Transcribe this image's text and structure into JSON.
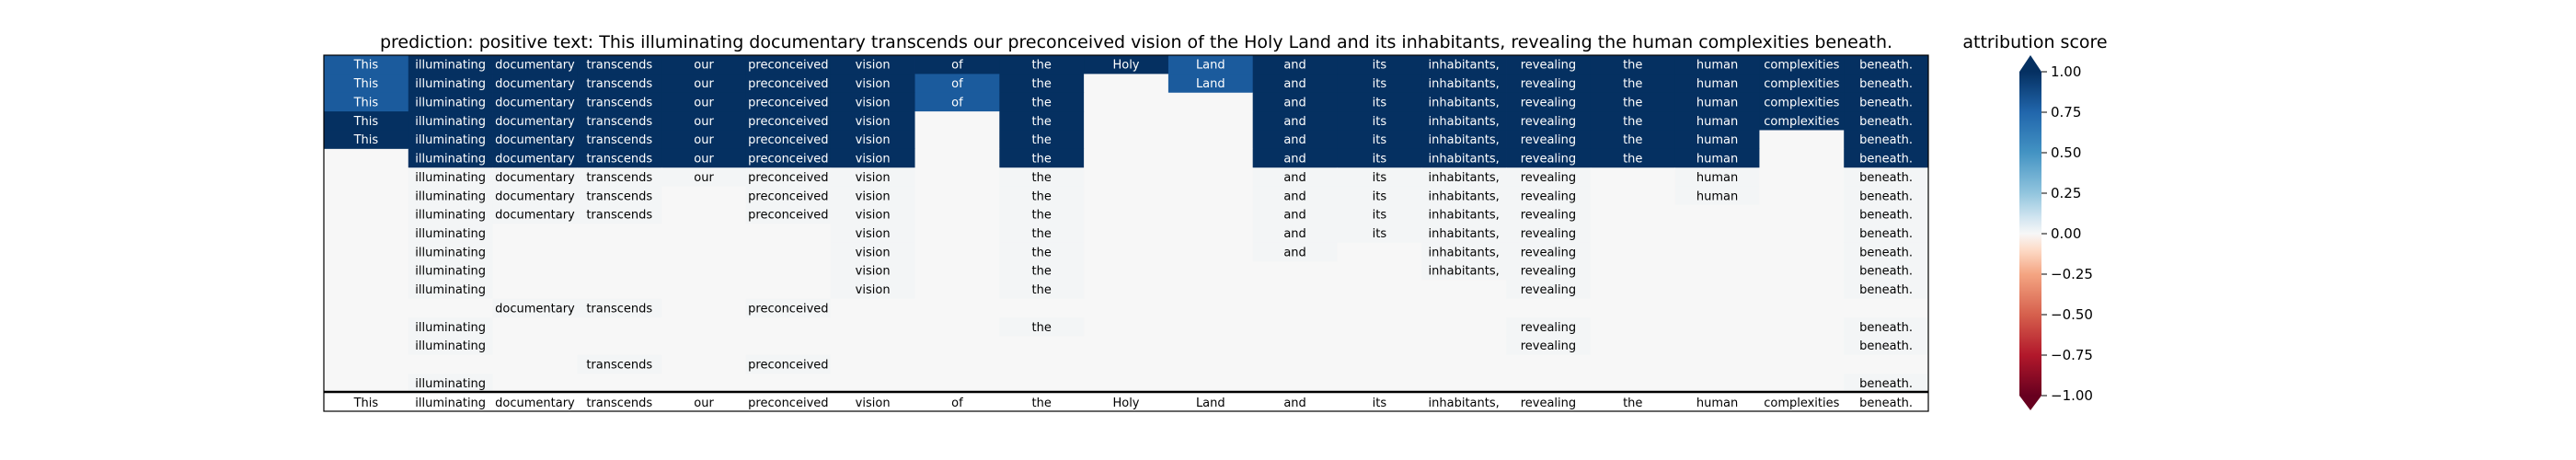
{
  "chart_data": [
    {
      "type": "heatmap",
      "title": "prediction:  positive     text:  This illuminating documentary transcends our preconceived vision of the Holy Land and its inhabitants, revealing the human complexities beneath.",
      "tokens": [
        "This",
        "illuminating",
        "documentary",
        "transcends",
        "our",
        "preconceived",
        "vision",
        "of",
        "the",
        "Holy",
        "Land",
        "and",
        "its",
        "inhabitants,",
        "revealing",
        "the",
        "human",
        "complexities",
        "beneath."
      ],
      "rows": [
        [
          0.8,
          1.0,
          1.0,
          1.0,
          1.0,
          1.0,
          1.0,
          1.0,
          1.0,
          1.0,
          0.8,
          1.0,
          1.0,
          1.0,
          1.0,
          1.0,
          1.0,
          1.0,
          1.0
        ],
        [
          0.8,
          1.0,
          1.0,
          1.0,
          1.0,
          1.0,
          1.0,
          0.8,
          1.0,
          0.0,
          0.8,
          1.0,
          1.0,
          1.0,
          1.0,
          1.0,
          1.0,
          1.0,
          1.0
        ],
        [
          0.8,
          1.0,
          1.0,
          1.0,
          1.0,
          1.0,
          1.0,
          0.8,
          1.0,
          0.0,
          0.0,
          1.0,
          1.0,
          1.0,
          1.0,
          1.0,
          1.0,
          1.0,
          1.0
        ],
        [
          1.0,
          1.0,
          1.0,
          1.0,
          1.0,
          1.0,
          1.0,
          0.0,
          1.0,
          0.0,
          0.0,
          1.0,
          1.0,
          1.0,
          1.0,
          1.0,
          1.0,
          1.0,
          1.0
        ],
        [
          1.0,
          1.0,
          1.0,
          1.0,
          1.0,
          1.0,
          1.0,
          0.0,
          1.0,
          0.0,
          0.0,
          1.0,
          1.0,
          1.0,
          1.0,
          1.0,
          1.0,
          0.0,
          1.0
        ],
        [
          0.0,
          1.0,
          1.0,
          1.0,
          1.0,
          1.0,
          1.0,
          0.0,
          1.0,
          0.0,
          0.0,
          1.0,
          1.0,
          1.0,
          1.0,
          1.0,
          1.0,
          0.0,
          1.0
        ],
        [
          0.0,
          0.01,
          0.01,
          0.01,
          0.01,
          0.01,
          0.01,
          0.0,
          0.01,
          0.0,
          0.0,
          0.01,
          0.01,
          0.01,
          0.01,
          0.0,
          0.01,
          0.0,
          0.01
        ],
        [
          0.0,
          0.01,
          0.01,
          0.01,
          0.0,
          0.01,
          0.01,
          0.0,
          0.01,
          0.0,
          0.0,
          0.01,
          0.01,
          0.01,
          0.01,
          0.0,
          0.01,
          0.0,
          0.01
        ],
        [
          0.0,
          0.01,
          0.01,
          0.01,
          0.0,
          0.01,
          0.01,
          0.0,
          0.01,
          0.0,
          0.0,
          0.01,
          0.01,
          0.01,
          0.01,
          0.0,
          0.0,
          0.0,
          0.01
        ],
        [
          0.0,
          0.01,
          0.0,
          0.0,
          0.0,
          0.0,
          0.01,
          0.0,
          0.01,
          0.0,
          0.0,
          0.01,
          0.01,
          0.01,
          0.01,
          0.0,
          0.0,
          0.0,
          0.01
        ],
        [
          0.0,
          0.01,
          0.0,
          0.0,
          0.0,
          0.0,
          0.01,
          0.0,
          0.01,
          0.0,
          0.0,
          0.01,
          0.0,
          0.01,
          0.01,
          0.0,
          0.0,
          0.0,
          0.01
        ],
        [
          0.0,
          0.01,
          0.0,
          0.0,
          0.0,
          0.0,
          0.01,
          0.0,
          0.01,
          0.0,
          0.0,
          0.0,
          0.0,
          0.01,
          0.01,
          0.0,
          0.0,
          0.0,
          0.01
        ],
        [
          0.0,
          0.01,
          0.0,
          0.0,
          0.0,
          0.0,
          0.01,
          0.0,
          0.01,
          0.0,
          0.0,
          0.0,
          0.0,
          0.0,
          0.01,
          0.0,
          0.0,
          0.0,
          0.01
        ],
        [
          0.0,
          0.0,
          0.01,
          0.01,
          0.0,
          0.01,
          0.0,
          0.0,
          0.0,
          0.0,
          0.0,
          0.0,
          0.0,
          0.0,
          0.0,
          0.0,
          0.0,
          0.0,
          0.0
        ],
        [
          0.0,
          0.01,
          0.0,
          0.0,
          0.0,
          0.0,
          0.0,
          0.0,
          0.01,
          0.0,
          0.0,
          0.0,
          0.0,
          0.0,
          0.01,
          0.0,
          0.0,
          0.0,
          0.01
        ],
        [
          0.0,
          0.01,
          0.0,
          0.0,
          0.0,
          0.0,
          0.0,
          0.0,
          0.0,
          0.0,
          0.0,
          0.0,
          0.0,
          0.0,
          0.01,
          0.0,
          0.0,
          0.0,
          0.01
        ],
        [
          0.0,
          0.0,
          0.0,
          0.01,
          0.0,
          0.01,
          0.0,
          0.0,
          0.0,
          0.0,
          0.0,
          0.0,
          0.0,
          0.0,
          0.0,
          0.0,
          0.0,
          0.0,
          0.0
        ],
        [
          0.0,
          0.01,
          0.0,
          0.0,
          0.0,
          0.0,
          0.0,
          0.0,
          0.0,
          0.0,
          0.0,
          0.0,
          0.0,
          0.0,
          0.0,
          0.0,
          0.0,
          0.0,
          0.01
        ]
      ],
      "footer_tokens": [
        "This",
        "illuminating",
        "documentary",
        "transcends",
        "our",
        "preconceived",
        "vision",
        "of",
        "the",
        "Holy",
        "Land",
        "and",
        "its",
        "inhabitants,",
        "revealing",
        "the",
        "human",
        "complexities",
        "beneath."
      ],
      "vmin": -1.0,
      "vmax": 1.0,
      "colormap": "RdBu",
      "colorbar": {
        "label": "attribution score",
        "ticks": [
          1.0,
          0.75,
          0.5,
          0.25,
          0.0,
          -0.25,
          -0.5,
          -0.75,
          -1.0
        ],
        "tick_labels": [
          "1.00",
          "0.75",
          "0.50",
          "0.25",
          "0.00",
          "−0.25",
          "−0.50",
          "−0.75",
          "−1.00"
        ],
        "extend": "both"
      },
      "grid": false,
      "legend": "right"
    }
  ]
}
